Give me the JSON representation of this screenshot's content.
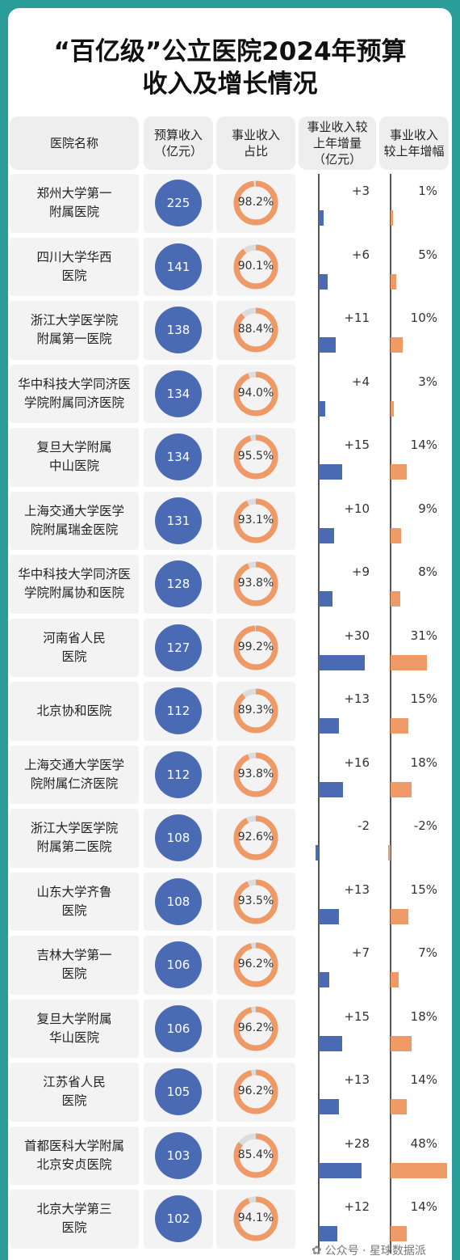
{
  "title_line1": "“百亿级”公立医院2024年预算",
  "title_line2": "收入及增长情况",
  "headers": [
    "医院名称",
    "预算收入\n（亿元）",
    "事业收入\n占比",
    "事业收入较\n上年增量\n（亿元）",
    "事业收入\n较上年增幅"
  ],
  "colors": {
    "budget": "#4a6bb3",
    "ratio": "#ef9a66",
    "increment": "#4a6bb3",
    "growth": "#ef9a66"
  },
  "chart_data": {
    "type": "table",
    "columns": [
      "医院名称",
      "预算收入（亿元）",
      "事业收入占比",
      "事业收入较上年增量（亿元）",
      "事业收入较上年增幅"
    ],
    "rows": [
      {
        "name": "郑州大学第一\n附属医院",
        "budget": "225",
        "ratio": "98.2%",
        "ratio_value": 98.2,
        "increment": "+3",
        "increment_value": 3,
        "growth": "1%",
        "growth_value": 1
      },
      {
        "name": "四川大学华西\n医院",
        "budget": "141",
        "ratio": "90.1%",
        "ratio_value": 90.1,
        "increment": "+6",
        "increment_value": 6,
        "growth": "5%",
        "growth_value": 5
      },
      {
        "name": "浙江大学医学院\n附属第一医院",
        "budget": "138",
        "ratio": "88.4%",
        "ratio_value": 88.4,
        "increment": "+11",
        "increment_value": 11,
        "growth": "10%",
        "growth_value": 10
      },
      {
        "name": "华中科技大学同济医\n学院附属同济医院",
        "budget": "134",
        "ratio": "94.0%",
        "ratio_value": 94.0,
        "increment": "+4",
        "increment_value": 4,
        "growth": "3%",
        "growth_value": 3
      },
      {
        "name": "复旦大学附属\n中山医院",
        "budget": "134",
        "ratio": "95.5%",
        "ratio_value": 95.5,
        "increment": "+15",
        "increment_value": 15,
        "growth": "14%",
        "growth_value": 14
      },
      {
        "name": "上海交通大学医学\n院附属瑞金医院",
        "budget": "131",
        "ratio": "93.1%",
        "ratio_value": 93.1,
        "increment": "+10",
        "increment_value": 10,
        "growth": "9%",
        "growth_value": 9
      },
      {
        "name": "华中科技大学同济医\n学院附属协和医院",
        "budget": "128",
        "ratio": "93.8%",
        "ratio_value": 93.8,
        "increment": "+9",
        "increment_value": 9,
        "growth": "8%",
        "growth_value": 8
      },
      {
        "name": "河南省人民\n医院",
        "budget": "127",
        "ratio": "99.2%",
        "ratio_value": 99.2,
        "increment": "+30",
        "increment_value": 30,
        "growth": "31%",
        "growth_value": 31
      },
      {
        "name": "北京协和医院",
        "budget": "112",
        "ratio": "89.3%",
        "ratio_value": 89.3,
        "increment": "+13",
        "increment_value": 13,
        "growth": "15%",
        "growth_value": 15
      },
      {
        "name": "上海交通大学医学\n院附属仁济医院",
        "budget": "112",
        "ratio": "93.8%",
        "ratio_value": 93.8,
        "increment": "+16",
        "increment_value": 16,
        "growth": "18%",
        "growth_value": 18
      },
      {
        "name": "浙江大学医学院\n附属第二医院",
        "budget": "108",
        "ratio": "92.6%",
        "ratio_value": 92.6,
        "increment": "-2",
        "increment_value": -2,
        "growth": "-2%",
        "growth_value": -2
      },
      {
        "name": "山东大学齐鲁\n医院",
        "budget": "108",
        "ratio": "93.5%",
        "ratio_value": 93.5,
        "increment": "+13",
        "increment_value": 13,
        "growth": "15%",
        "growth_value": 15
      },
      {
        "name": "吉林大学第一\n医院",
        "budget": "106",
        "ratio": "96.2%",
        "ratio_value": 96.2,
        "increment": "+7",
        "increment_value": 7,
        "growth": "7%",
        "growth_value": 7
      },
      {
        "name": "复旦大学附属\n华山医院",
        "budget": "106",
        "ratio": "96.2%",
        "ratio_value": 96.2,
        "increment": "+15",
        "increment_value": 15,
        "growth": "18%",
        "growth_value": 18
      },
      {
        "name": "江苏省人民\n医院",
        "budget": "105",
        "ratio": "96.2%",
        "ratio_value": 96.2,
        "increment": "+13",
        "increment_value": 13,
        "growth": "14%",
        "growth_value": 14
      },
      {
        "name": "首都医科大学附属\n北京安贞医院",
        "budget": "103",
        "ratio": "85.4%",
        "ratio_value": 85.4,
        "increment": "+28",
        "increment_value": 28,
        "growth": "48%",
        "growth_value": 48
      },
      {
        "name": "北京大学第三\n医院",
        "budget": "102",
        "ratio": "94.1%",
        "ratio_value": 94.1,
        "increment": "+12",
        "increment_value": 12,
        "growth": "14%",
        "growth_value": 14
      }
    ]
  },
  "footer": {
    "icon": "wechat-icon",
    "text": "公众号 · 星球数据派"
  }
}
